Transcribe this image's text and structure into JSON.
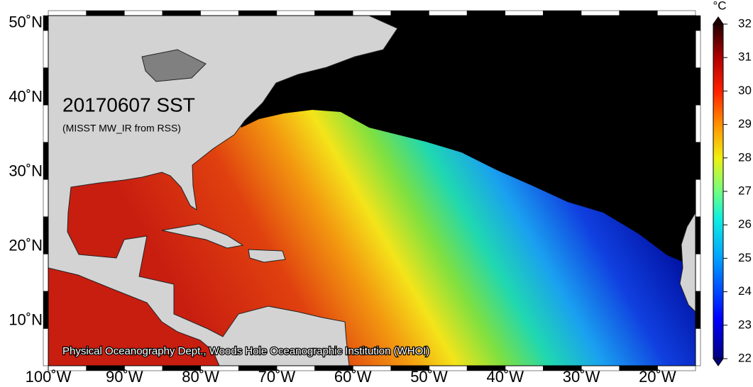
{
  "map": {
    "title": "20170607 SST",
    "subtitle": "(MISST MW_IR from RSS)",
    "credit": "Physical Oceanography Dept., Woods Hole Oceanographic Institution (WHOI)",
    "lon_range": [
      -100,
      -15
    ],
    "lat_range": [
      4,
      51
    ],
    "lon_ticks": [
      {
        "value": -100,
        "label": "100˚W"
      },
      {
        "value": -90,
        "label": "90˚W"
      },
      {
        "value": -80,
        "label": "80˚W"
      },
      {
        "value": -70,
        "label": "70˚W"
      },
      {
        "value": -60,
        "label": "60˚W"
      },
      {
        "value": -50,
        "label": "50˚W"
      },
      {
        "value": -40,
        "label": "40˚W"
      },
      {
        "value": -30,
        "label": "30˚W"
      },
      {
        "value": -20,
        "label": "20˚W"
      }
    ],
    "lat_ticks": [
      {
        "value": 10,
        "label": "10˚N"
      },
      {
        "value": 20,
        "label": "20˚N"
      },
      {
        "value": 30,
        "label": "30˚N"
      },
      {
        "value": 40,
        "label": "40˚N"
      },
      {
        "value": 50,
        "label": "50˚N"
      }
    ]
  },
  "colorbar": {
    "unit": "°C",
    "range": [
      22,
      32
    ],
    "ticks": [
      22,
      23,
      24,
      25,
      26,
      27,
      28,
      29,
      30,
      31,
      32
    ]
  }
}
